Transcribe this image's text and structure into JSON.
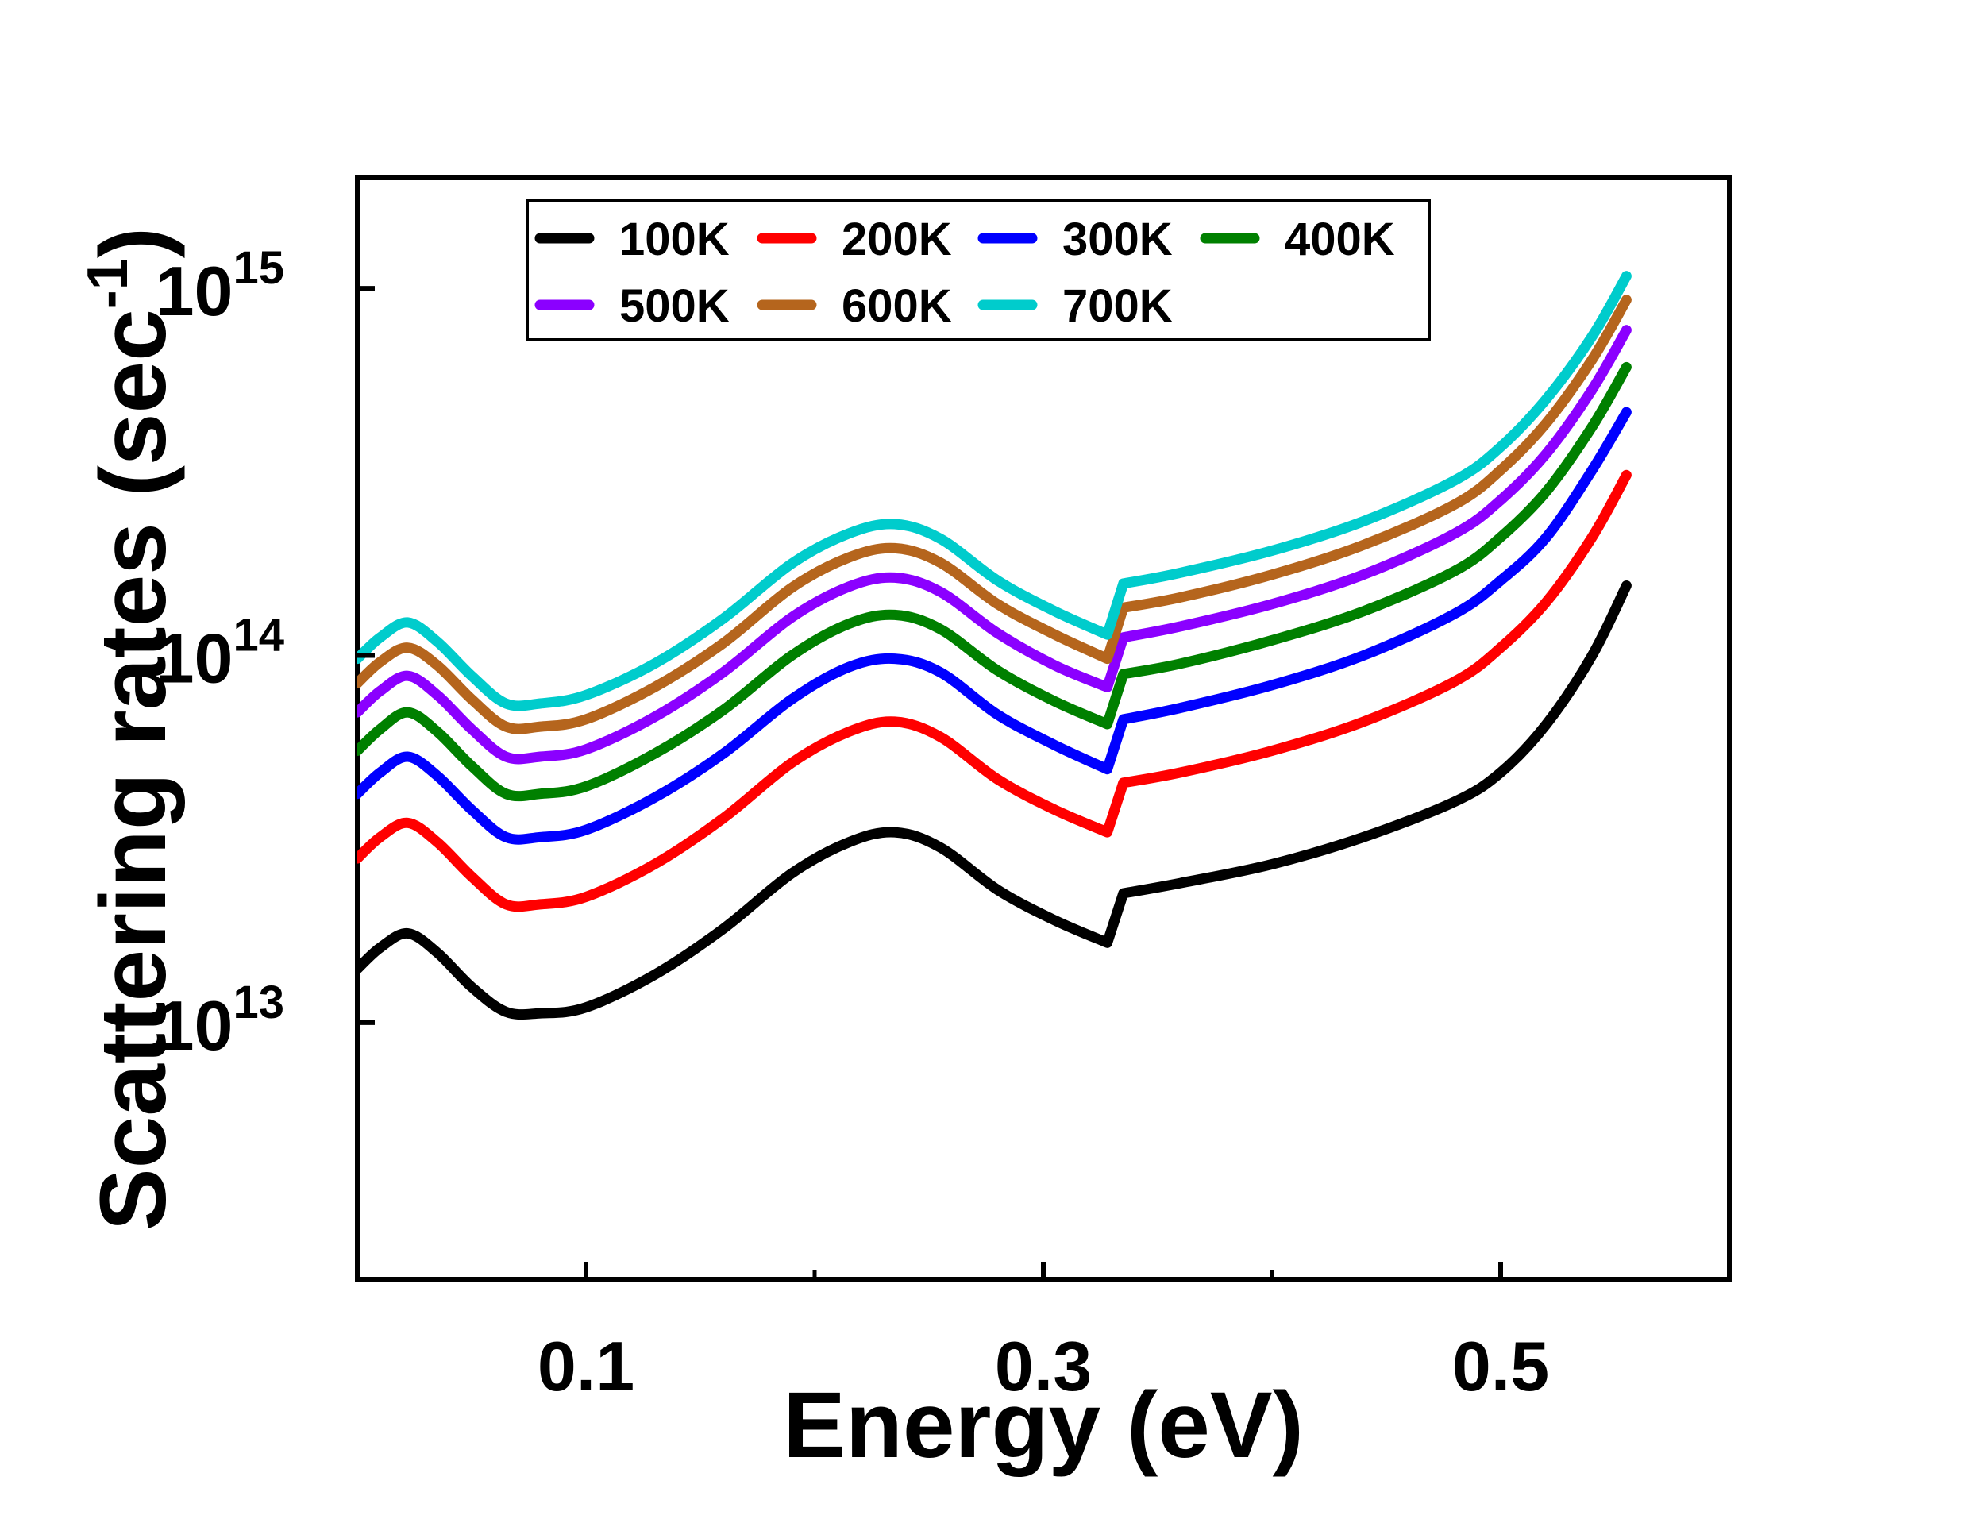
{
  "chart_data": {
    "type": "line",
    "title": "",
    "xlabel": "Energy (eV)",
    "ylabel_main": "Scattering rates (sec",
    "ylabel_sup": "-1",
    "ylabel_close": ")",
    "xscale": "linear",
    "yscale": "log",
    "xlim": [
      0.0,
      0.6
    ],
    "ylim": [
      2000000000000.0,
      2000000000000000.0
    ],
    "xticks": [
      {
        "value": 0.1,
        "label": "0.1"
      },
      {
        "value": 0.3,
        "label": "0.3"
      },
      {
        "value": 0.5,
        "label": "0.5"
      }
    ],
    "yticks": [
      {
        "value": 10000000000000.0,
        "base": "10",
        "exp": "13"
      },
      {
        "value": 100000000000000.0,
        "base": "10",
        "exp": "14"
      },
      {
        "value": 1000000000000000.0,
        "base": "10",
        "exp": "15"
      }
    ],
    "legend_position": "top-center",
    "x": [
      0.0,
      0.01,
      0.022,
      0.035,
      0.05,
      0.065,
      0.08,
      0.1,
      0.13,
      0.16,
      0.19,
      0.215,
      0.235,
      0.255,
      0.28,
      0.305,
      0.328,
      0.335,
      0.36,
      0.4,
      0.44,
      0.48,
      0.5,
      0.52,
      0.54,
      0.555
    ],
    "series": [
      {
        "name": "100K",
        "color": "#000000",
        "values": [
          14000000000000.0,
          16000000000000.0,
          17500000000000.0,
          15500000000000.0,
          12500000000000.0,
          10700000000000.0,
          10600000000000.0,
          11000000000000.0,
          13500000000000.0,
          18000000000000.0,
          25500000000000.0,
          31000000000000.0,
          33000000000000.0,
          30000000000000.0,
          23000000000000.0,
          19000000000000.0,
          16500000000000.0,
          22500000000000.0,
          24000000000000.0,
          27000000000000.0,
          32000000000000.0,
          40000000000000.0,
          48000000000000.0,
          65000000000000.0,
          100000000000000.0,
          155000000000000.0
        ]
      },
      {
        "name": "200K",
        "color": "#ff0000",
        "values": [
          28000000000000.0,
          32000000000000.0,
          35000000000000.0,
          31000000000000.0,
          25000000000000.0,
          21000000000000.0,
          21000000000000.0,
          22000000000000.0,
          27000000000000.0,
          36000000000000.0,
          51000000000000.0,
          62000000000000.0,
          66000000000000.0,
          60000000000000.0,
          46000000000000.0,
          38000000000000.0,
          33000000000000.0,
          45000000000000.0,
          48000000000000.0,
          55000000000000.0,
          66000000000000.0,
          85000000000000.0,
          105000000000000.0,
          140000000000000.0,
          210000000000000.0,
          310000000000000.0
        ]
      },
      {
        "name": "300K",
        "color": "#0000ff",
        "values": [
          42000000000000.0,
          48000000000000.0,
          53000000000000.0,
          47000000000000.0,
          38000000000000.0,
          32000000000000.0,
          32000000000000.0,
          33500000000000.0,
          41000000000000.0,
          54000000000000.0,
          76000000000000.0,
          93000000000000.0,
          98000000000000.0,
          90000000000000.0,
          69000000000000.0,
          57000000000000.0,
          49000000000000.0,
          67000000000000.0,
          72000000000000.0,
          83000000000000.0,
          100000000000000.0,
          130000000000000.0,
          160000000000000.0,
          210000000000000.0,
          320000000000000.0,
          460000000000000.0
        ]
      },
      {
        "name": "400K",
        "color": "#008000",
        "values": [
          55000000000000.0,
          63000000000000.0,
          70000000000000.0,
          62000000000000.0,
          50000000000000.0,
          42000000000000.0,
          42000000000000.0,
          44000000000000.0,
          54000000000000.0,
          71000000000000.0,
          100000000000000.0,
          122000000000000.0,
          129000000000000.0,
          118000000000000.0,
          91000000000000.0,
          75000000000000.0,
          65000000000000.0,
          89000000000000.0,
          95000000000000.0,
          110000000000000.0,
          132000000000000.0,
          170000000000000.0,
          210000000000000.0,
          280000000000000.0,
          420000000000000.0,
          610000000000000.0
        ]
      },
      {
        "name": "500K",
        "color": "#8b00ff",
        "values": [
          70000000000000.0,
          80000000000000.0,
          88000000000000.0,
          78000000000000.0,
          63000000000000.0,
          53000000000000.0,
          53000000000000.0,
          55500000000000.0,
          68000000000000.0,
          90000000000000.0,
          127000000000000.0,
          154000000000000.0,
          163000000000000.0,
          149000000000000.0,
          115000000000000.0,
          94000000000000.0,
          82000000000000.0,
          112000000000000.0,
          120000000000000.0,
          138000000000000.0,
          166000000000000.0,
          215000000000000.0,
          265000000000000.0,
          355000000000000.0,
          530000000000000.0,
          770000000000000.0
        ]
      },
      {
        "name": "600K",
        "color": "#b5651d",
        "values": [
          84000000000000.0,
          96000000000000.0,
          105000000000000.0,
          94000000000000.0,
          76000000000000.0,
          64000000000000.0,
          64000000000000.0,
          67000000000000.0,
          82000000000000.0,
          108000000000000.0,
          153000000000000.0,
          185000000000000.0,
          196000000000000.0,
          179000000000000.0,
          138000000000000.0,
          114000000000000.0,
          98000000000000.0,
          135000000000000.0,
          144000000000000.0,
          166000000000000.0,
          200000000000000.0,
          258000000000000.0,
          320000000000000.0,
          430000000000000.0,
          640000000000000.0,
          930000000000000.0
        ]
      },
      {
        "name": "700K",
        "color": "#00cccc",
        "values": [
          98000000000000.0,
          112000000000000.0,
          123000000000000.0,
          109000000000000.0,
          88000000000000.0,
          74000000000000.0,
          74000000000000.0,
          78000000000000.0,
          95000000000000.0,
          126000000000000.0,
          178000000000000.0,
          215000000000000.0,
          228000000000000.0,
          208000000000000.0,
          160000000000000.0,
          132000000000000.0,
          114000000000000.0,
          157000000000000.0,
          168000000000000.0,
          193000000000000.0,
          232000000000000.0,
          300000000000000.0,
          370000000000000.0,
          500000000000000.0,
          740000000000000.0,
          1080000000000000.0
        ]
      }
    ]
  }
}
